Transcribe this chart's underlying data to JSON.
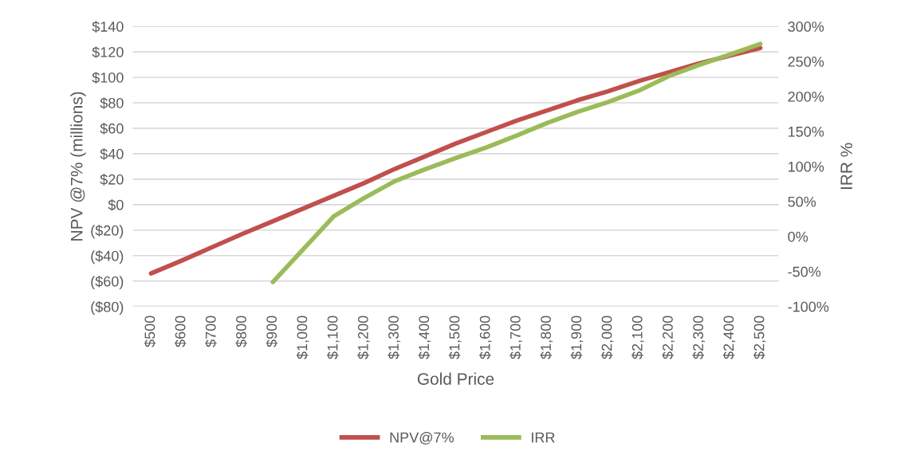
{
  "chart_data": {
    "type": "line",
    "xlabel": "Gold Price",
    "ylabel": "NPV @7% (millions)",
    "y2label": "IRR %",
    "categories": [
      "$500",
      "$600",
      "$700",
      "$800",
      "$900",
      "$1,000",
      "$1,100",
      "$1,200",
      "$1,300",
      "$1,400",
      "$1,500",
      "$1,600",
      "$1,700",
      "$1,800",
      "$1,900",
      "$2,000",
      "$2,100",
      "$2,200",
      "$2,300",
      "$2,400",
      "$2,500"
    ],
    "series": [
      {
        "name": "NPV@7%",
        "color": "#c0504d",
        "values": [
          -54,
          -44,
          -33.5,
          -23,
          -13,
          -3,
          7,
          17,
          28,
          38,
          48,
          57,
          66,
          74,
          82,
          89,
          97,
          104,
          111,
          117,
          123
        ]
      },
      {
        "name": "IRR",
        "color": "#9bbb59",
        "axis": "y2",
        "values": [
          null,
          null,
          null,
          null,
          -65,
          -18,
          29,
          55,
          79,
          96,
          112,
          127,
          144,
          162,
          178,
          192,
          208,
          229,
          245,
          260,
          275
        ]
      }
    ],
    "ylim": [
      -80,
      140
    ],
    "yticks": [
      {
        "value": -80,
        "label": "($80)"
      },
      {
        "value": -60,
        "label": "($60)"
      },
      {
        "value": -40,
        "label": "($40)"
      },
      {
        "value": -20,
        "label": "($20)"
      },
      {
        "value": 0,
        "label": "$0"
      },
      {
        "value": 20,
        "label": "$20"
      },
      {
        "value": 40,
        "label": "$40"
      },
      {
        "value": 60,
        "label": "$60"
      },
      {
        "value": 80,
        "label": "$80"
      },
      {
        "value": 100,
        "label": "$100"
      },
      {
        "value": 120,
        "label": "$120"
      },
      {
        "value": 140,
        "label": "$140"
      }
    ],
    "y2lim": [
      -100,
      300
    ],
    "y2ticks": [
      {
        "value": -100,
        "label": "-100%"
      },
      {
        "value": -50,
        "label": "-50%"
      },
      {
        "value": 0,
        "label": "0%"
      },
      {
        "value": 50,
        "label": "50%"
      },
      {
        "value": 100,
        "label": "100%"
      },
      {
        "value": 150,
        "label": "150%"
      },
      {
        "value": 200,
        "label": "200%"
      },
      {
        "value": 250,
        "label": "250%"
      },
      {
        "value": 300,
        "label": "300%"
      }
    ],
    "grid": "y",
    "legend": "bottom",
    "marker": "none",
    "line_style": "solid"
  }
}
